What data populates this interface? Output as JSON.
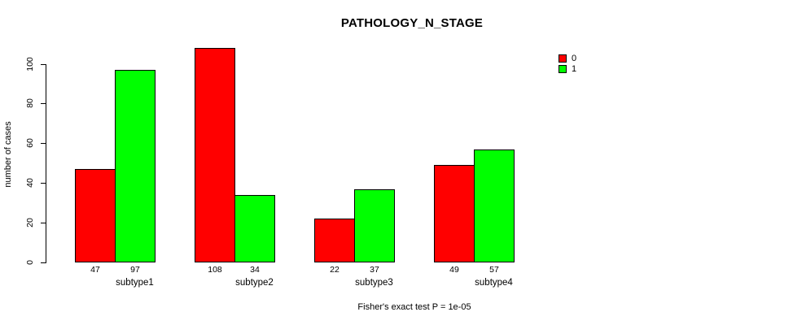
{
  "title": "PATHOLOGY_N_STAGE",
  "caption": "Fisher's exact test P = 1e-05",
  "colors": {
    "series0": "#ff0000",
    "series1": "#00ff00",
    "axis": "#000000",
    "background": "#ffffff"
  },
  "chart_data": {
    "type": "bar",
    "title": "PATHOLOGY_N_STAGE",
    "subtitle": "Fisher's exact test P = 1e-05",
    "xlabel": "",
    "ylabel": "number of cases",
    "categories": [
      "subtype1",
      "subtype2",
      "subtype3",
      "subtype4"
    ],
    "series": [
      {
        "name": "0",
        "color": "#ff0000",
        "values": [
          47,
          108,
          22,
          49
        ]
      },
      {
        "name": "1",
        "color": "#00ff00",
        "values": [
          97,
          34,
          37,
          57
        ]
      }
    ],
    "bar_value_labels": [
      [
        47,
        97
      ],
      [
        108,
        34
      ],
      [
        22,
        37
      ],
      [
        49,
        57
      ]
    ],
    "yticks": [
      0,
      20,
      40,
      60,
      80,
      100
    ],
    "ylim": [
      0,
      110
    ],
    "grid": false,
    "grouped": true,
    "legend_position": "top-right",
    "legend_entries": [
      "0",
      "1"
    ]
  }
}
